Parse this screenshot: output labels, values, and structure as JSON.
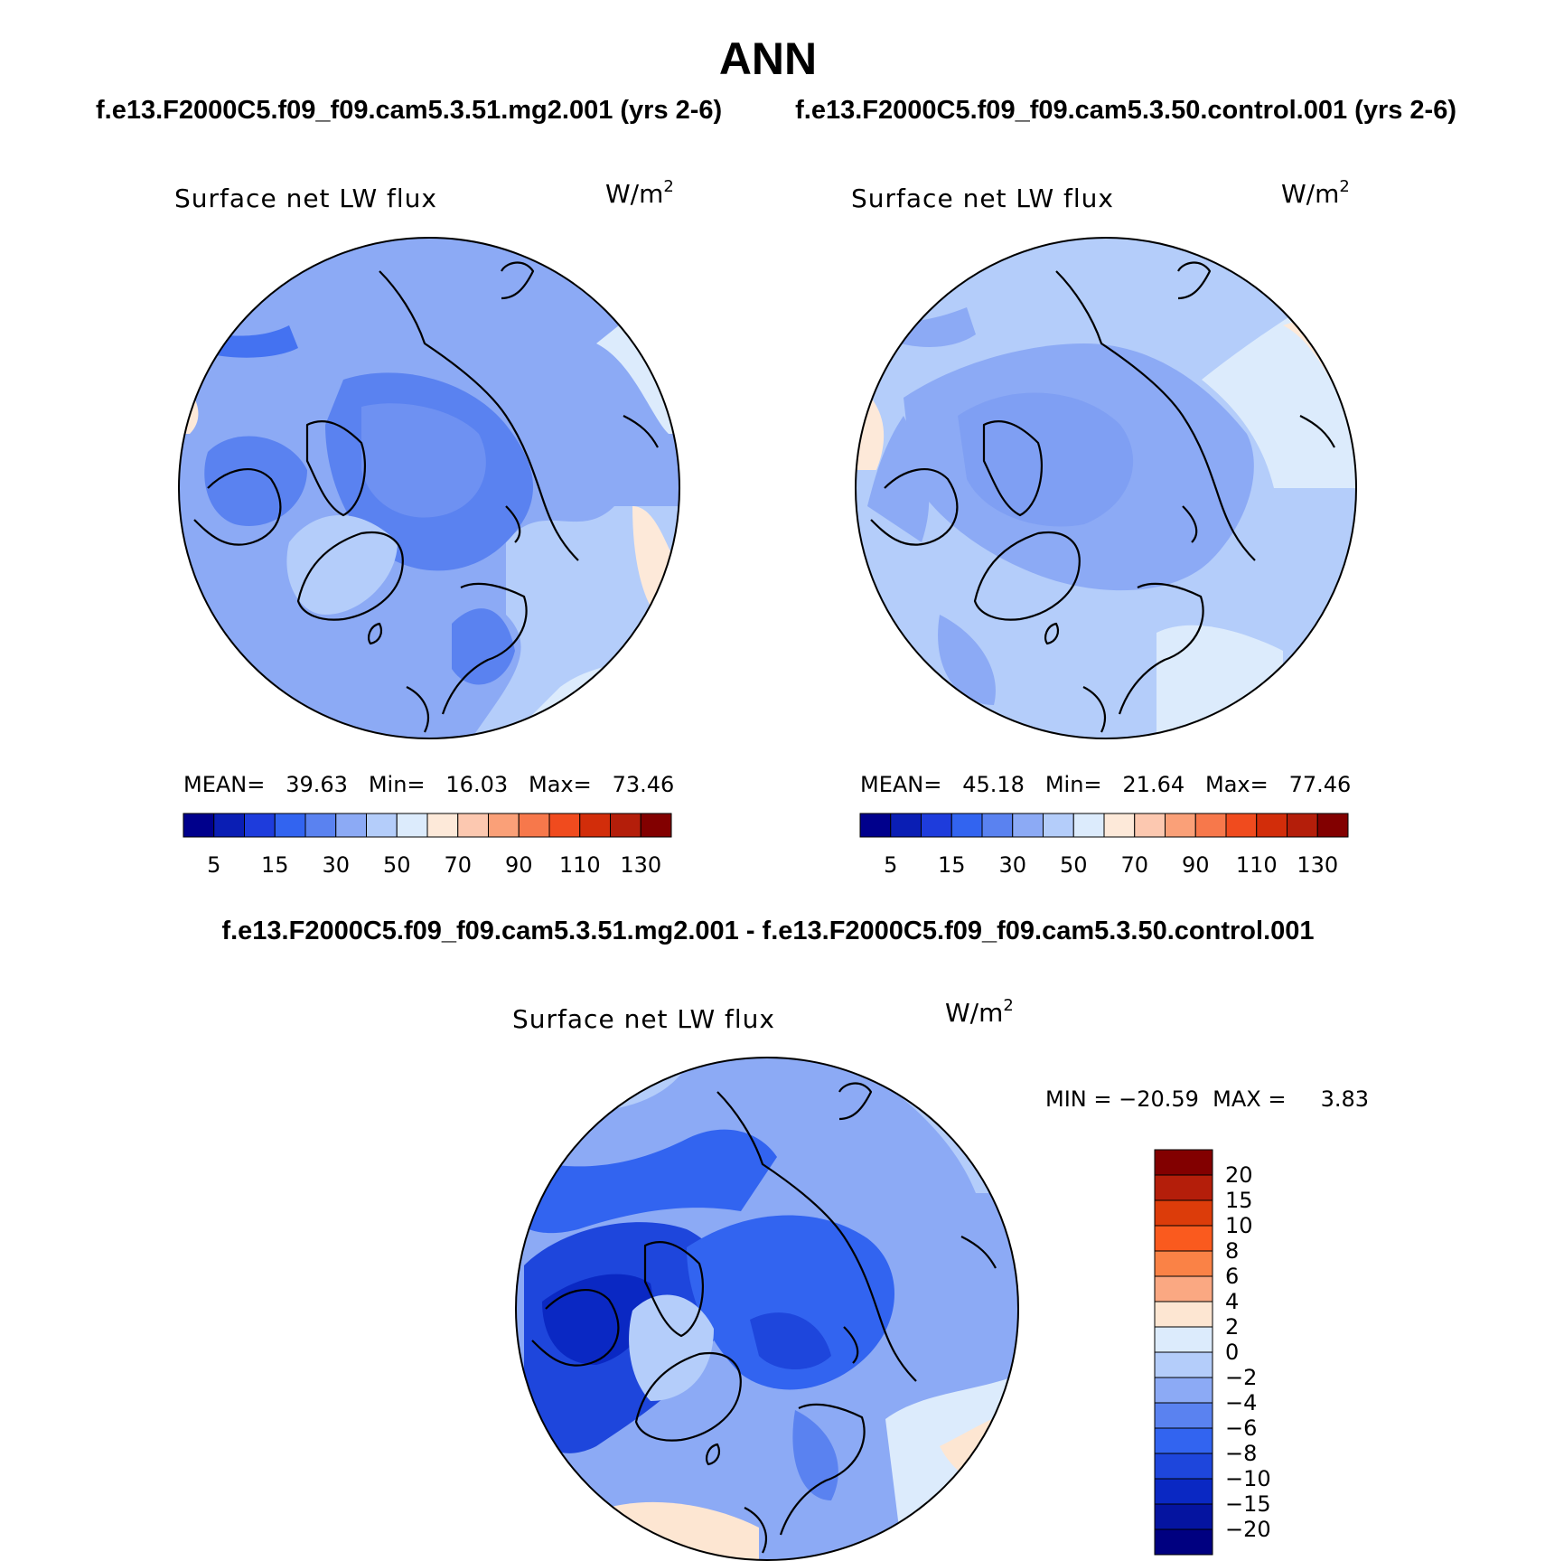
{
  "figure": {
    "title": "ANN",
    "top_left_header": "f.e13.F2000C5.f09_f09.cam5.3.51.mg2.001 (yrs 2-6)",
    "top_right_header": "f.e13.F2000C5.f09_f09.cam5.3.50.control.001 (yrs 2-6)",
    "diff_header": "f.e13.F2000C5.f09_f09.cam5.3.51.mg2.001 - f.e13.F2000C5.f09_f09.cam5.3.50.control.001"
  },
  "chart_data": [
    {
      "type": "heatmap",
      "projection": "north-polar-stereographic",
      "variable": "Surface net LW flux",
      "units_base": "W/m",
      "units_exp": "2",
      "stats_line": "MEAN=   39.63   Min=   16.03   Max=   73.46",
      "stats": {
        "mean": 39.63,
        "min": 16.03,
        "max": 73.46
      },
      "colorbar": {
        "orientation": "horizontal",
        "levels": [
          5,
          10,
          15,
          20,
          30,
          40,
          50,
          60,
          70,
          80,
          90,
          100,
          110,
          120,
          130
        ],
        "tick_labels": [
          "5",
          "15",
          "30",
          "50",
          "70",
          "90",
          "110",
          "130"
        ],
        "colors": [
          "#00008c",
          "#0a1eb4",
          "#1e3cdc",
          "#3264f0",
          "#5a82f0",
          "#8caaf5",
          "#b4cdfa",
          "#dcebfc",
          "#fde9d9",
          "#fcc8b0",
          "#faa078",
          "#f7784b",
          "#f04b1e",
          "#d22d0a",
          "#b41e0a",
          "#820000"
        ]
      }
    },
    {
      "type": "heatmap",
      "projection": "north-polar-stereographic",
      "variable": "Surface net LW flux",
      "units_base": "W/m",
      "units_exp": "2",
      "stats_line": "MEAN=   45.18   Min=   21.64   Max=   77.46",
      "stats": {
        "mean": 45.18,
        "min": 21.64,
        "max": 77.46
      },
      "colorbar": {
        "orientation": "horizontal",
        "levels": [
          5,
          10,
          15,
          20,
          30,
          40,
          50,
          60,
          70,
          80,
          90,
          100,
          110,
          120,
          130
        ],
        "tick_labels": [
          "5",
          "15",
          "30",
          "50",
          "70",
          "90",
          "110",
          "130"
        ],
        "colors": [
          "#00008c",
          "#0a1eb4",
          "#1e3cdc",
          "#3264f0",
          "#5a82f0",
          "#8caaf5",
          "#b4cdfa",
          "#dcebfc",
          "#fde9d9",
          "#fcc8b0",
          "#faa078",
          "#f7784b",
          "#f04b1e",
          "#d22d0a",
          "#b41e0a",
          "#820000"
        ]
      }
    },
    {
      "type": "heatmap",
      "projection": "north-polar-stereographic",
      "variable": "Surface net LW flux",
      "units_base": "W/m",
      "units_exp": "2",
      "stats_line": "MIN = −20.59  MAX =     3.83",
      "stats": {
        "min": -20.59,
        "max": 3.83
      },
      "colorbar": {
        "orientation": "vertical",
        "tick_labels": [
          "20",
          "15",
          "10",
          "8",
          "6",
          "4",
          "2",
          "0",
          "−2",
          "−4",
          "−6",
          "−8",
          "−10",
          "−15",
          "−20"
        ],
        "colors": [
          "#820000",
          "#b41e0a",
          "#dc3c0a",
          "#fa5a1e",
          "#fa8246",
          "#faa882",
          "#fde6d2",
          "#dcebfc",
          "#b4cdfa",
          "#8caaf5",
          "#5a82f0",
          "#3264f0",
          "#1e46dc",
          "#0a28c3",
          "#0514a0",
          "#000080"
        ]
      }
    }
  ]
}
